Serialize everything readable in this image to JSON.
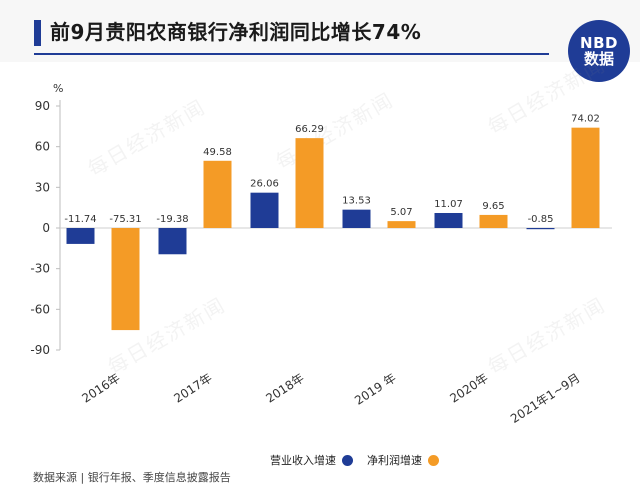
{
  "header": {
    "title": "前9月贵阳农商银行净利润同比增长74%",
    "logo_line1": "NBD",
    "logo_line2": "数据"
  },
  "watermark_text": "每日经济新闻",
  "chart_data": {
    "type": "bar",
    "title": "前9月贵阳农商银行净利润同比增长74%",
    "ylabel": "%",
    "xlabel": "",
    "ylim": [
      -90,
      90
    ],
    "yticks": [
      90,
      60,
      30,
      0,
      -30,
      -60,
      -90
    ],
    "categories": [
      "2016年",
      "2017年",
      "2018年",
      "2019 年",
      "2020年",
      "2021年1~9月"
    ],
    "series": [
      {
        "name": "营业收入增速",
        "color": "#1f3c96",
        "values": [
          -11.74,
          -19.38,
          26.06,
          13.53,
          11.07,
          -0.85
        ]
      },
      {
        "name": "净利润增速",
        "color": "#f49b26",
        "values": [
          -75.31,
          49.58,
          66.29,
          5.07,
          9.65,
          74.02
        ]
      }
    ],
    "legend_position": "bottom-right",
    "grid": false
  },
  "footer": {
    "source": "数据来源 | 银行年报、季度信息披露报告"
  }
}
